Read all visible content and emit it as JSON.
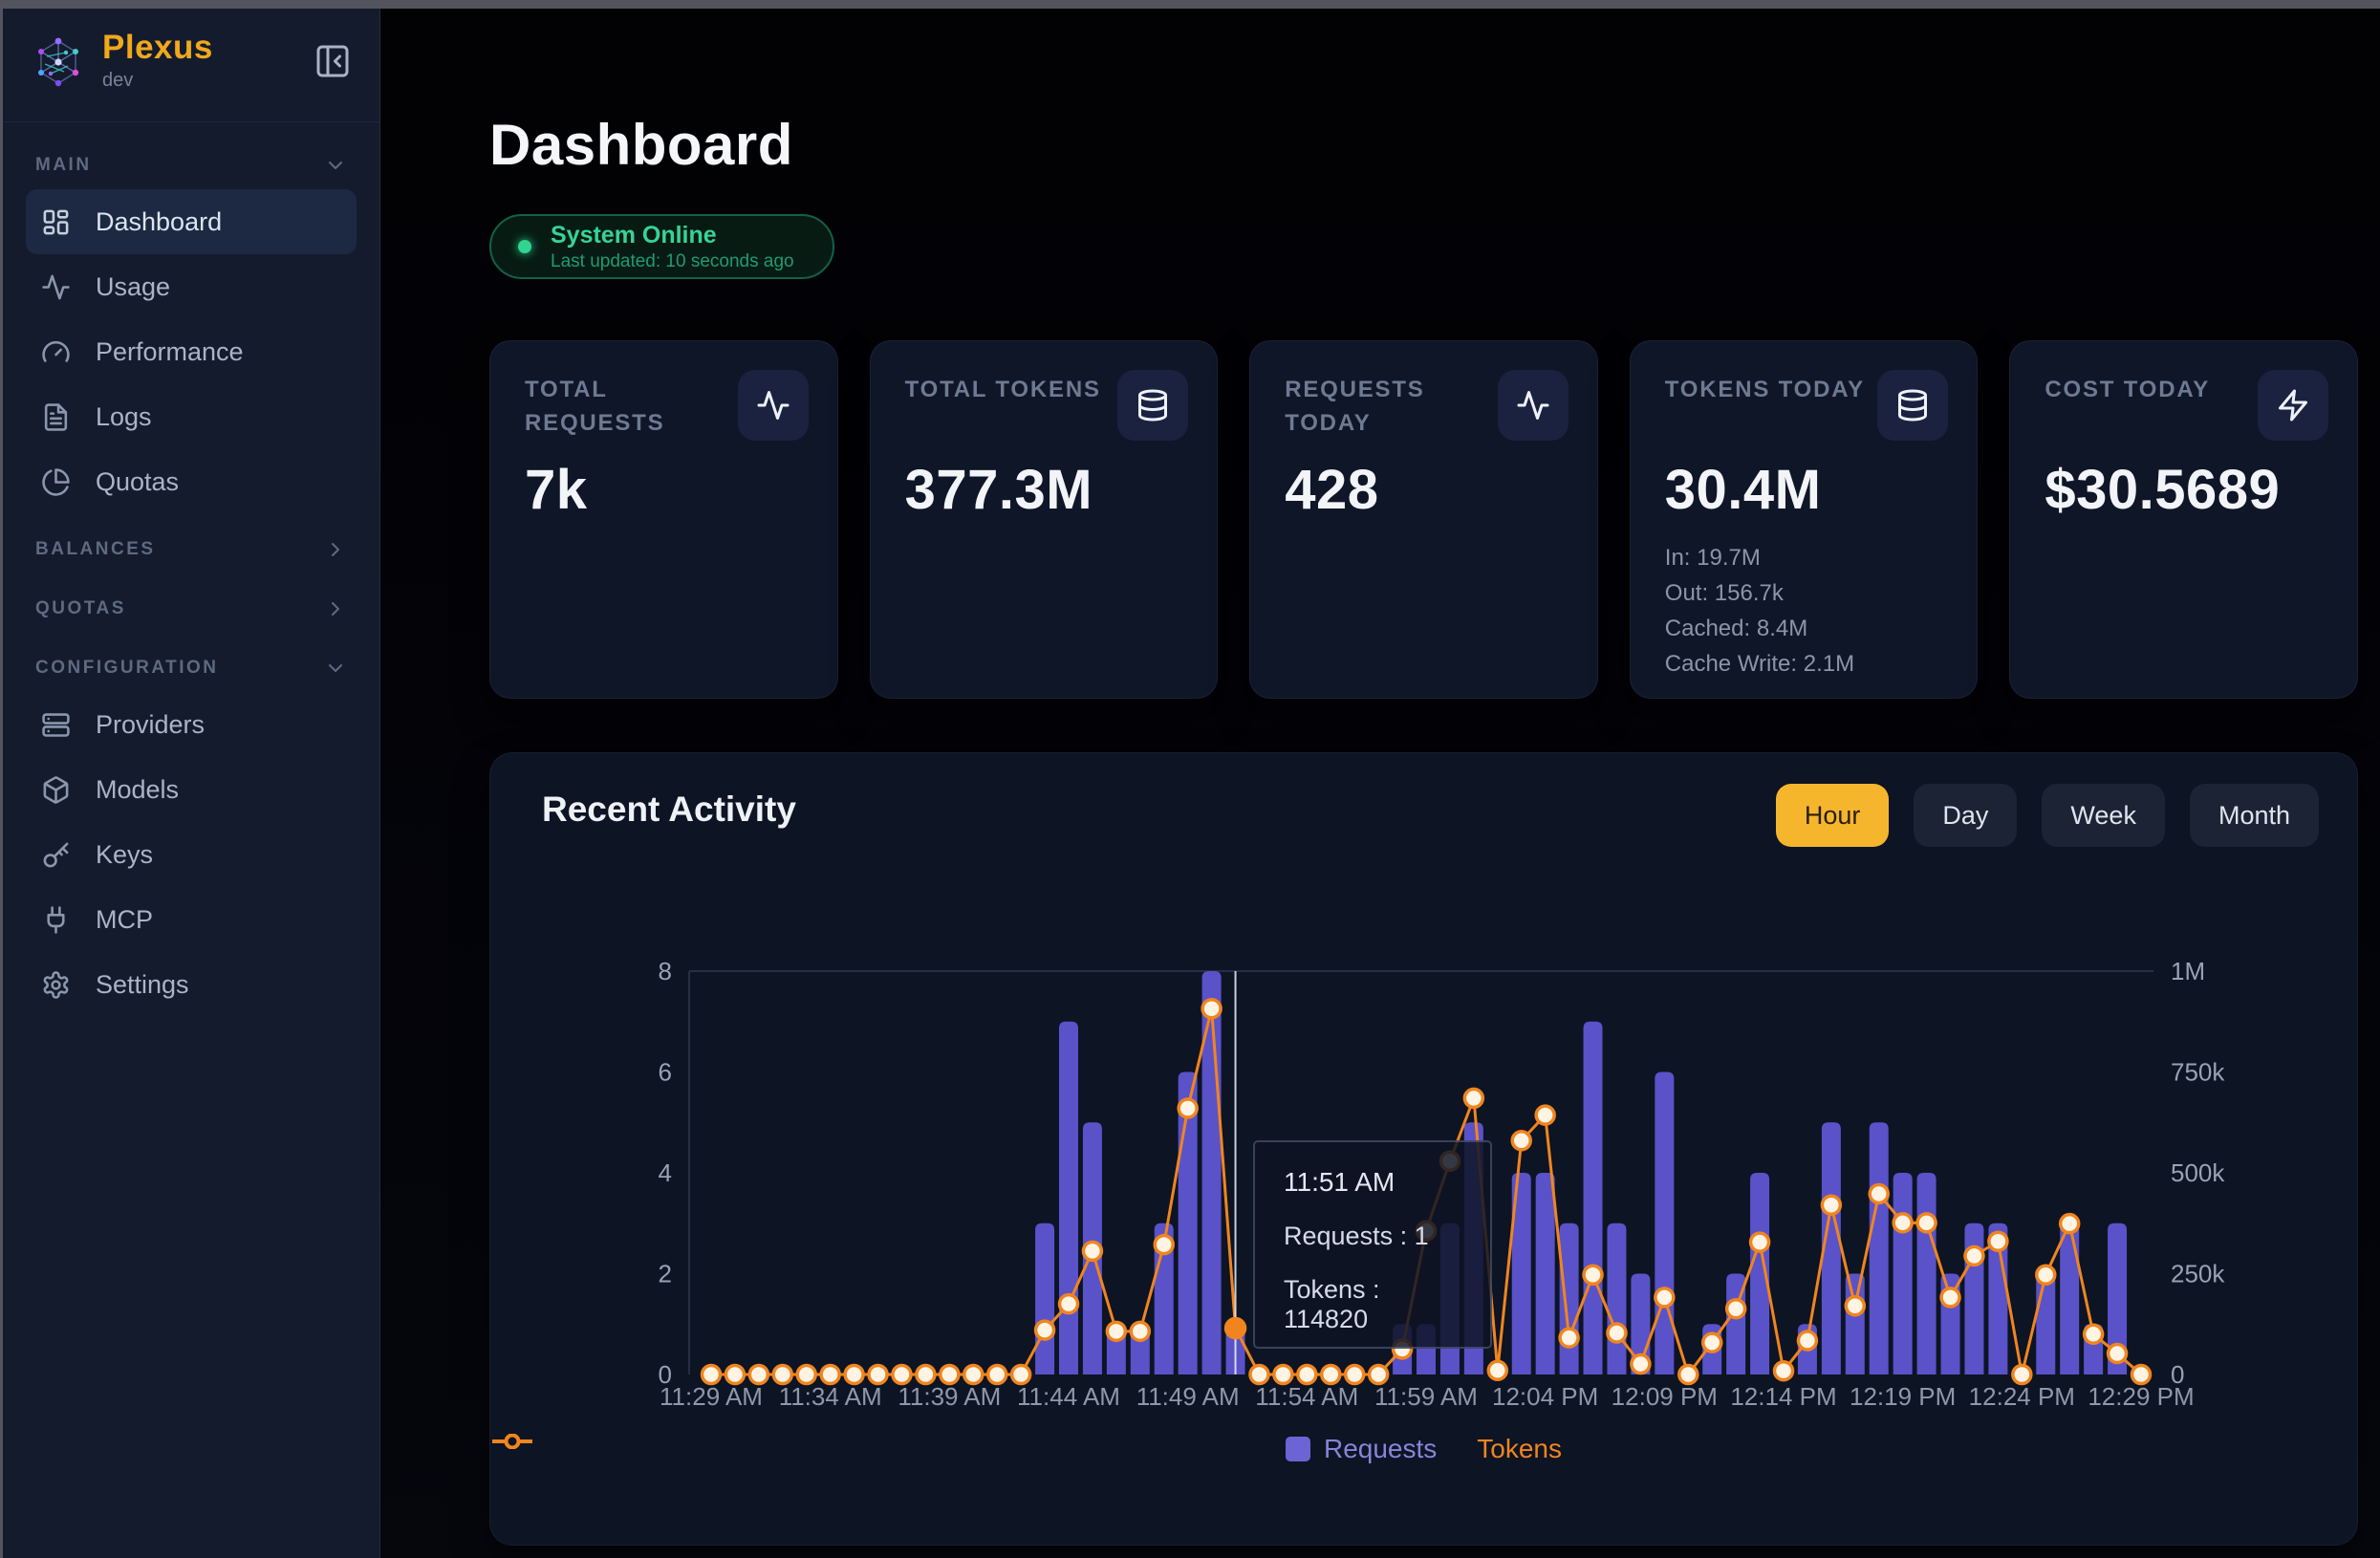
{
  "sidebar": {
    "logo": {
      "name": "Plexus",
      "env": "dev"
    },
    "sections": [
      {
        "label": "MAIN",
        "chevron": "chevron-down-icon",
        "items": [
          {
            "icon": "layout-dashboard-icon",
            "label": "Dashboard",
            "active": true
          },
          {
            "icon": "activity-icon",
            "label": "Usage",
            "active": false
          },
          {
            "icon": "gauge-icon",
            "label": "Performance",
            "active": false
          },
          {
            "icon": "file-text-icon",
            "label": "Logs",
            "active": false
          },
          {
            "icon": "pie-chart-icon",
            "label": "Quotas",
            "active": false
          }
        ]
      },
      {
        "label": "BALANCES",
        "chevron": "chevron-right-icon",
        "items": []
      },
      {
        "label": "QUOTAS",
        "chevron": "chevron-right-icon",
        "items": []
      },
      {
        "label": "CONFIGURATION",
        "chevron": "chevron-down-icon",
        "items": [
          {
            "icon": "server-icon",
            "label": "Providers",
            "active": false
          },
          {
            "icon": "box-icon",
            "label": "Models",
            "active": false
          },
          {
            "icon": "key-icon",
            "label": "Keys",
            "active": false
          },
          {
            "icon": "plug-icon",
            "label": "MCP",
            "active": false
          },
          {
            "icon": "gear-icon",
            "label": "Settings",
            "active": false
          }
        ]
      }
    ]
  },
  "header": {
    "title": "Dashboard",
    "status": {
      "label": "System Online",
      "updated": "Last updated: 10 seconds ago",
      "color": "#2fd590"
    }
  },
  "stats": [
    {
      "label": "TOTAL REQUESTS",
      "value": "7k",
      "icon": "activity-icon",
      "details": []
    },
    {
      "label": "TOTAL TOKENS",
      "value": "377.3M",
      "icon": "database-icon",
      "details": []
    },
    {
      "label": "REQUESTS TODAY",
      "value": "428",
      "icon": "activity-icon",
      "details": []
    },
    {
      "label": "TOKENS TODAY",
      "value": "30.4M",
      "icon": "database-icon",
      "details": [
        "In: 19.7M",
        "Out: 156.7k",
        "Cached: 8.4M",
        "Cache Write: 2.1M"
      ]
    },
    {
      "label": "COST TODAY",
      "value": "$30.5689",
      "icon": "zap-icon",
      "details": []
    }
  ],
  "activity": {
    "title": "Recent Activity",
    "ranges": [
      {
        "label": "Hour",
        "active": true
      },
      {
        "label": "Day",
        "active": false
      },
      {
        "label": "Week",
        "active": false
      },
      {
        "label": "Month",
        "active": false
      }
    ],
    "accent": "#f5b62e"
  },
  "chart_data": {
    "type": "bar+line combo (Requests bars on left axis, Tokens line on right axis)",
    "x": [
      "11:29 AM",
      "11:30 AM",
      "11:31 AM",
      "11:32 AM",
      "11:33 AM",
      "11:34 AM",
      "11:35 AM",
      "11:36 AM",
      "11:37 AM",
      "11:38 AM",
      "11:39 AM",
      "11:40 AM",
      "11:41 AM",
      "11:42 AM",
      "11:43 AM",
      "11:44 AM",
      "11:45 AM",
      "11:46 AM",
      "11:47 AM",
      "11:48 AM",
      "11:49 AM",
      "11:50 AM",
      "11:51 AM",
      "11:52 AM",
      "11:53 AM",
      "11:54 AM",
      "11:55 AM",
      "11:56 AM",
      "11:57 AM",
      "11:58 AM",
      "11:59 AM",
      "12:00 PM",
      "12:01 PM",
      "12:02 PM",
      "12:03 PM",
      "12:04 PM",
      "12:05 PM",
      "12:06 PM",
      "12:07 PM",
      "12:08 PM",
      "12:09 PM",
      "12:10 PM",
      "12:11 PM",
      "12:12 PM",
      "12:13 PM",
      "12:14 PM",
      "12:15 PM",
      "12:16 PM",
      "12:17 PM",
      "12:18 PM",
      "12:19 PM",
      "12:20 PM",
      "12:21 PM",
      "12:22 PM",
      "12:23 PM",
      "12:24 PM",
      "12:25 PM",
      "12:26 PM",
      "12:27 PM",
      "12:28 PM",
      "12:29 PM"
    ],
    "x_tick_step": 5,
    "series": [
      {
        "name": "Requests",
        "type": "bar",
        "axis": "left",
        "color": "#5a52c9",
        "values": [
          0,
          0,
          0,
          0,
          0,
          0,
          0,
          0,
          0,
          0,
          0,
          0,
          0,
          0,
          3,
          7,
          5,
          1,
          1,
          3,
          6,
          8,
          1,
          0,
          0,
          0,
          0,
          0,
          0,
          1,
          1,
          3,
          5,
          0,
          4,
          4,
          3,
          7,
          3,
          2,
          6,
          0,
          1,
          2,
          4,
          0,
          1,
          5,
          2,
          5,
          4,
          4,
          2,
          3,
          3,
          0,
          2,
          3,
          1,
          3,
          0
        ]
      },
      {
        "name": "Tokens",
        "type": "line",
        "axis": "right",
        "color": "#f0851f",
        "values": [
          0,
          0,
          0,
          0,
          0,
          0,
          0,
          0,
          0,
          0,
          0,
          0,
          0,
          0,
          110000,
          175000,
          306000,
          107000,
          107000,
          322000,
          660000,
          907000,
          114820,
          0,
          0,
          0,
          0,
          0,
          0,
          63000,
          356000,
          529000,
          685000,
          10000,
          580000,
          643000,
          91000,
          247000,
          103000,
          26000,
          191000,
          0,
          79000,
          163000,
          328000,
          9000,
          84000,
          420000,
          170000,
          448000,
          376000,
          376000,
          191000,
          294000,
          330000,
          0,
          247000,
          374000,
          100000,
          52000,
          0
        ]
      }
    ],
    "y_left": {
      "label": "Requests",
      "min": 0,
      "max": 8,
      "ticks": [
        "0",
        "2",
        "4",
        "6",
        "8"
      ]
    },
    "y_right": {
      "label": "Tokens",
      "min": 0,
      "max": 1000000,
      "ticks": [
        "0",
        "250k",
        "500k",
        "750k",
        "1M"
      ]
    },
    "grid": "single top gridline at max",
    "legend_position": "bottom center",
    "tooltip": {
      "index": 22,
      "time": "11:51 AM",
      "requests_line": "Requests : 1",
      "tokens_line": "Tokens : 114820"
    }
  }
}
